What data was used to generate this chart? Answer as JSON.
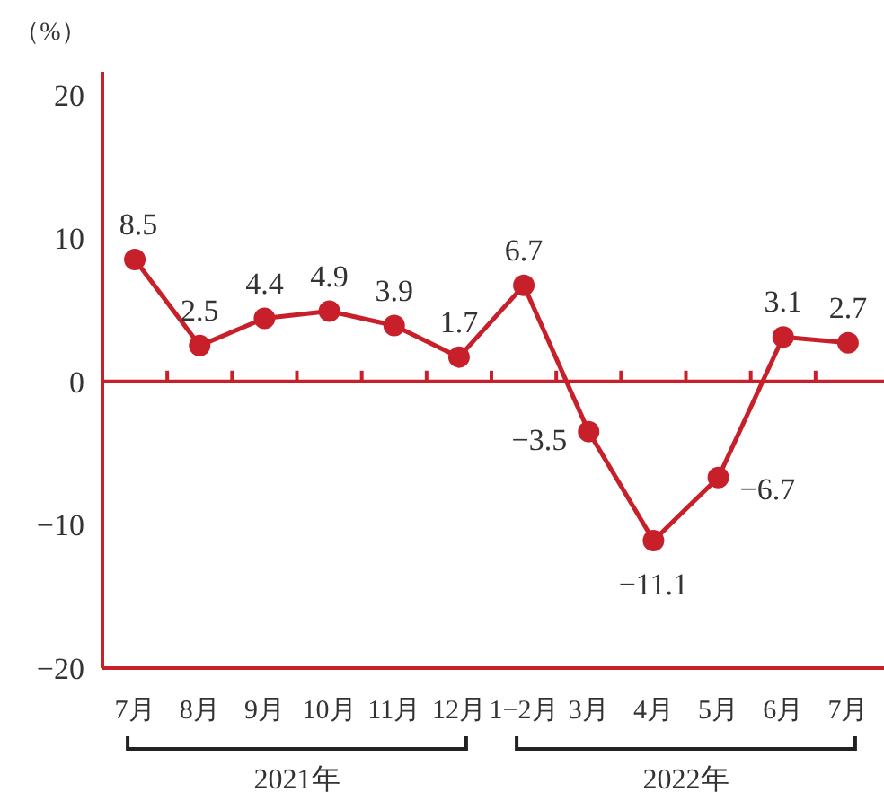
{
  "chart_data": {
    "type": "line",
    "ylabel": "（%）",
    "categories": [
      "7月",
      "8月",
      "9月",
      "10月",
      "11月",
      "12月",
      "1−2月",
      "3月",
      "4月",
      "5月",
      "6月",
      "7月"
    ],
    "series": [
      {
        "color": "#c8202a",
        "values": [
          8.5,
          2.5,
          4.4,
          4.9,
          3.9,
          1.7,
          6.7,
          -3.5,
          -11.1,
          -6.7,
          3.1,
          2.7
        ]
      }
    ],
    "ylim": [
      -20,
      21.6
    ],
    "yticks": [
      {
        "value": -20,
        "label": "−20"
      },
      {
        "value": -10,
        "label": "−10"
      },
      0,
      10,
      20
    ],
    "ref_lines": [
      {
        "axis": "y",
        "value": 0,
        "color": "#c8202a"
      }
    ],
    "annotations": [
      "2021年",
      "2022年"
    ],
    "data_labels": true,
    "marker": "circle"
  }
}
